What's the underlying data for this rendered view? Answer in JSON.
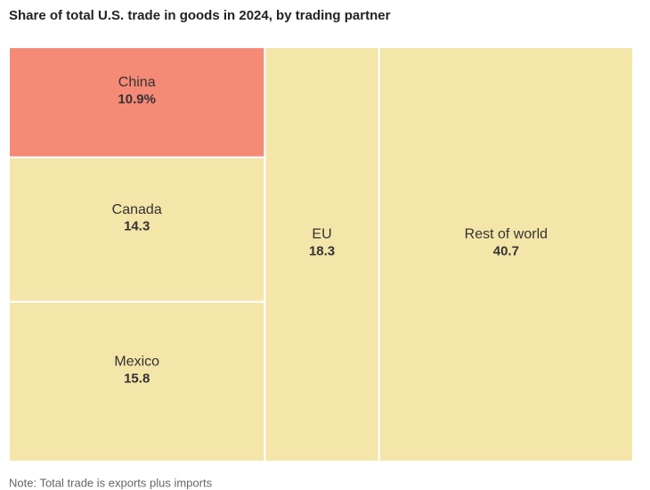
{
  "chart_data": {
    "type": "treemap",
    "title": "Share of total U.S. trade in goods in 2024, by trading partner",
    "categories": [
      "China",
      "Canada",
      "Mexico",
      "EU",
      "Rest of world"
    ],
    "values": [
      10.9,
      14.3,
      15.8,
      18.3,
      40.7
    ],
    "value_labels": [
      "10.9%",
      "14.3",
      "15.8",
      "18.3",
      "40.7"
    ],
    "colors": [
      "#f58a76",
      "#f4e5a9",
      "#f4e5a9",
      "#f4e5a9",
      "#f4e5a9"
    ],
    "note": "Note: Total trade is exports plus imports"
  }
}
